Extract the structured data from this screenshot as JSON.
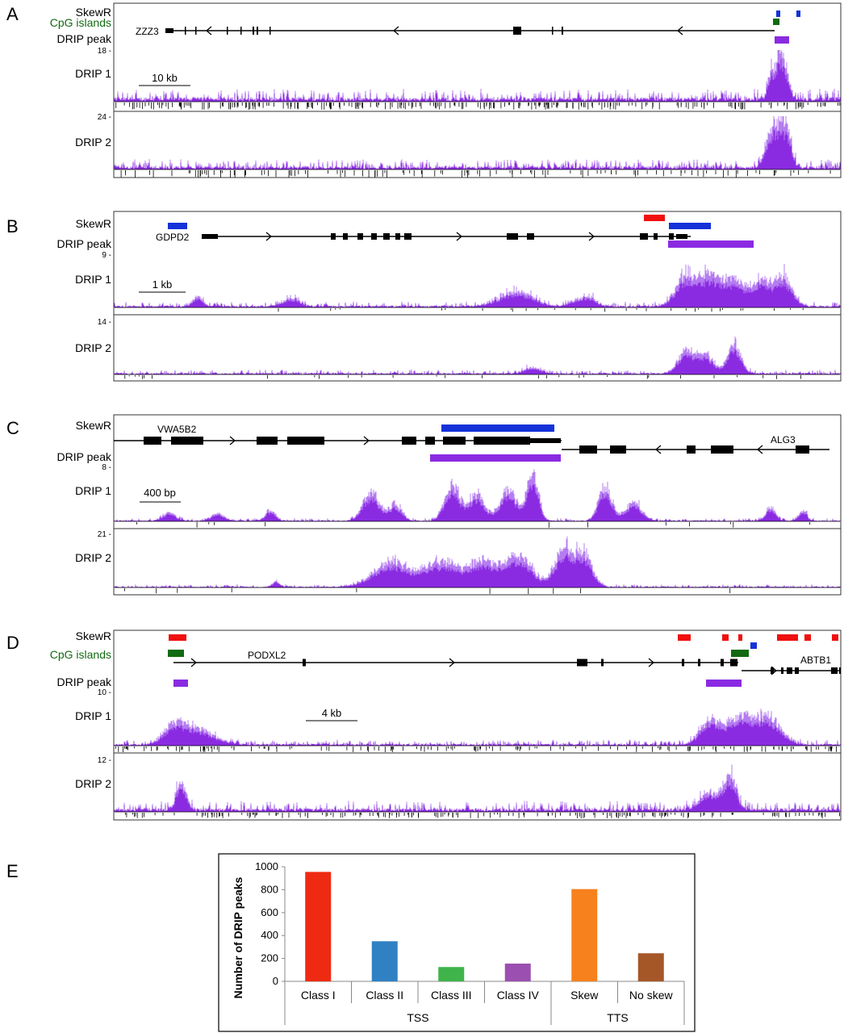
{
  "colors": {
    "skewr_blue": "#1432d8",
    "skewr_red": "#f01010",
    "cpg_green": "#126a12",
    "drip_purple": "#8a2be2",
    "drip_light": "#b57cf0",
    "gene_black": "#000000",
    "class1": "#ee2a12",
    "class2": "#2f81c3",
    "class3": "#3fb44a",
    "class4": "#9b4fb0",
    "skew": "#f7811d",
    "noskew": "#a65728"
  },
  "panels": {
    "A": {
      "letter": "A",
      "track_labels": {
        "skewr": "SkewR",
        "cpg": "CpG islands",
        "peak": "DRIP peak",
        "drip1": "DRIP 1",
        "drip2": "DRIP 2"
      },
      "gene": "ZZZ3",
      "scale": "10 kb",
      "drip1_max": "18 -",
      "drip2_max": "24 -"
    },
    "B": {
      "letter": "B",
      "track_labels": {
        "skewr": "SkewR",
        "peak": "DRIP peak",
        "drip1": "DRIP 1",
        "drip2": "DRIP 2"
      },
      "gene": "GDPD2",
      "scale": "1 kb",
      "drip1_max": "9 -",
      "drip2_max": "14 -"
    },
    "C": {
      "letter": "C",
      "track_labels": {
        "skewr": "SkewR",
        "peak": "DRIP peak",
        "drip1": "DRIP 1",
        "drip2": "DRIP 2"
      },
      "gene": "VWA5B2",
      "gene2": "ALG3",
      "scale": "400 bp",
      "drip1_max": "8 -",
      "drip2_max": "21 -"
    },
    "D": {
      "letter": "D",
      "track_labels": {
        "skewr": "SkewR",
        "cpg": "CpG islands",
        "peak": "DRIP peak",
        "drip1": "DRIP 1",
        "drip2": "DRIP 2"
      },
      "gene": "PODXL2",
      "gene2": "ABTB1",
      "scale": "4 kb",
      "drip1_max": "10 -",
      "drip2_max": "12 -"
    }
  },
  "panel_e": {
    "letter": "E"
  },
  "chart_data": {
    "type": "bar",
    "categories": [
      "Class I",
      "Class II",
      "Class III",
      "Class IV",
      "Skew",
      "No skew"
    ],
    "groups": [
      {
        "label": "TSS",
        "categories": [
          "Class I",
          "Class II",
          "Class III",
          "Class IV"
        ]
      },
      {
        "label": "TTS",
        "categories": [
          "Skew",
          "No skew"
        ]
      }
    ],
    "values": [
      955,
      350,
      125,
      155,
      805,
      245
    ],
    "ylabel": "Number of DRIP peaks",
    "ylim": [
      0,
      1000
    ],
    "yticks": [
      0,
      200,
      400,
      600,
      800,
      1000
    ],
    "bar_colors": [
      "#ee2a12",
      "#2f81c3",
      "#3fb44a",
      "#9b4fb0",
      "#f7811d",
      "#a65728"
    ],
    "grid": false,
    "legend": "none"
  }
}
